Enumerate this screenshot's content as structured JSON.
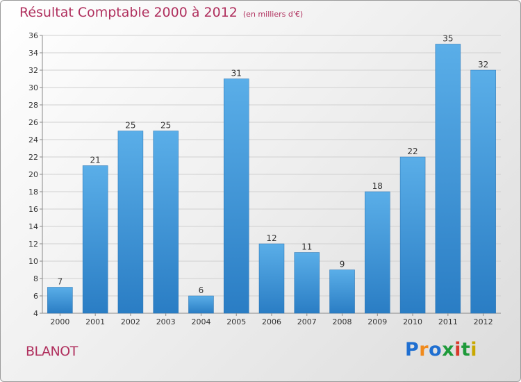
{
  "title": "Résultat Comptable 2000 à 2012",
  "subtitle": "(en milliers d'€)",
  "place": "BLANOT",
  "logo": {
    "letters": [
      "P",
      "r",
      "o",
      "x",
      "i",
      "t",
      "i"
    ],
    "colors": [
      "#1f6fd1",
      "#f08a1c",
      "#1f6fd1",
      "#1e9a3a",
      "#d8392b",
      "#1e9a3a",
      "#c9a800"
    ]
  },
  "colors": {
    "bar": "#3a95d8",
    "title": "#b0305e",
    "grid": "#d0d0d0"
  },
  "chart_data": {
    "type": "bar",
    "title": "Résultat Comptable 2000 à 2012",
    "categories": [
      "2000",
      "2001",
      "2002",
      "2003",
      "2004",
      "2005",
      "2006",
      "2007",
      "2008",
      "2009",
      "2010",
      "2011",
      "2012"
    ],
    "values": [
      7,
      21,
      25,
      25,
      6,
      31,
      12,
      11,
      9,
      18,
      22,
      35,
      32
    ],
    "ylim": [
      4,
      36
    ],
    "yticks": [
      4,
      6,
      8,
      10,
      12,
      14,
      16,
      18,
      20,
      22,
      24,
      26,
      28,
      30,
      32,
      34,
      36
    ],
    "grid": true,
    "xlabel": "",
    "ylabel": ""
  }
}
